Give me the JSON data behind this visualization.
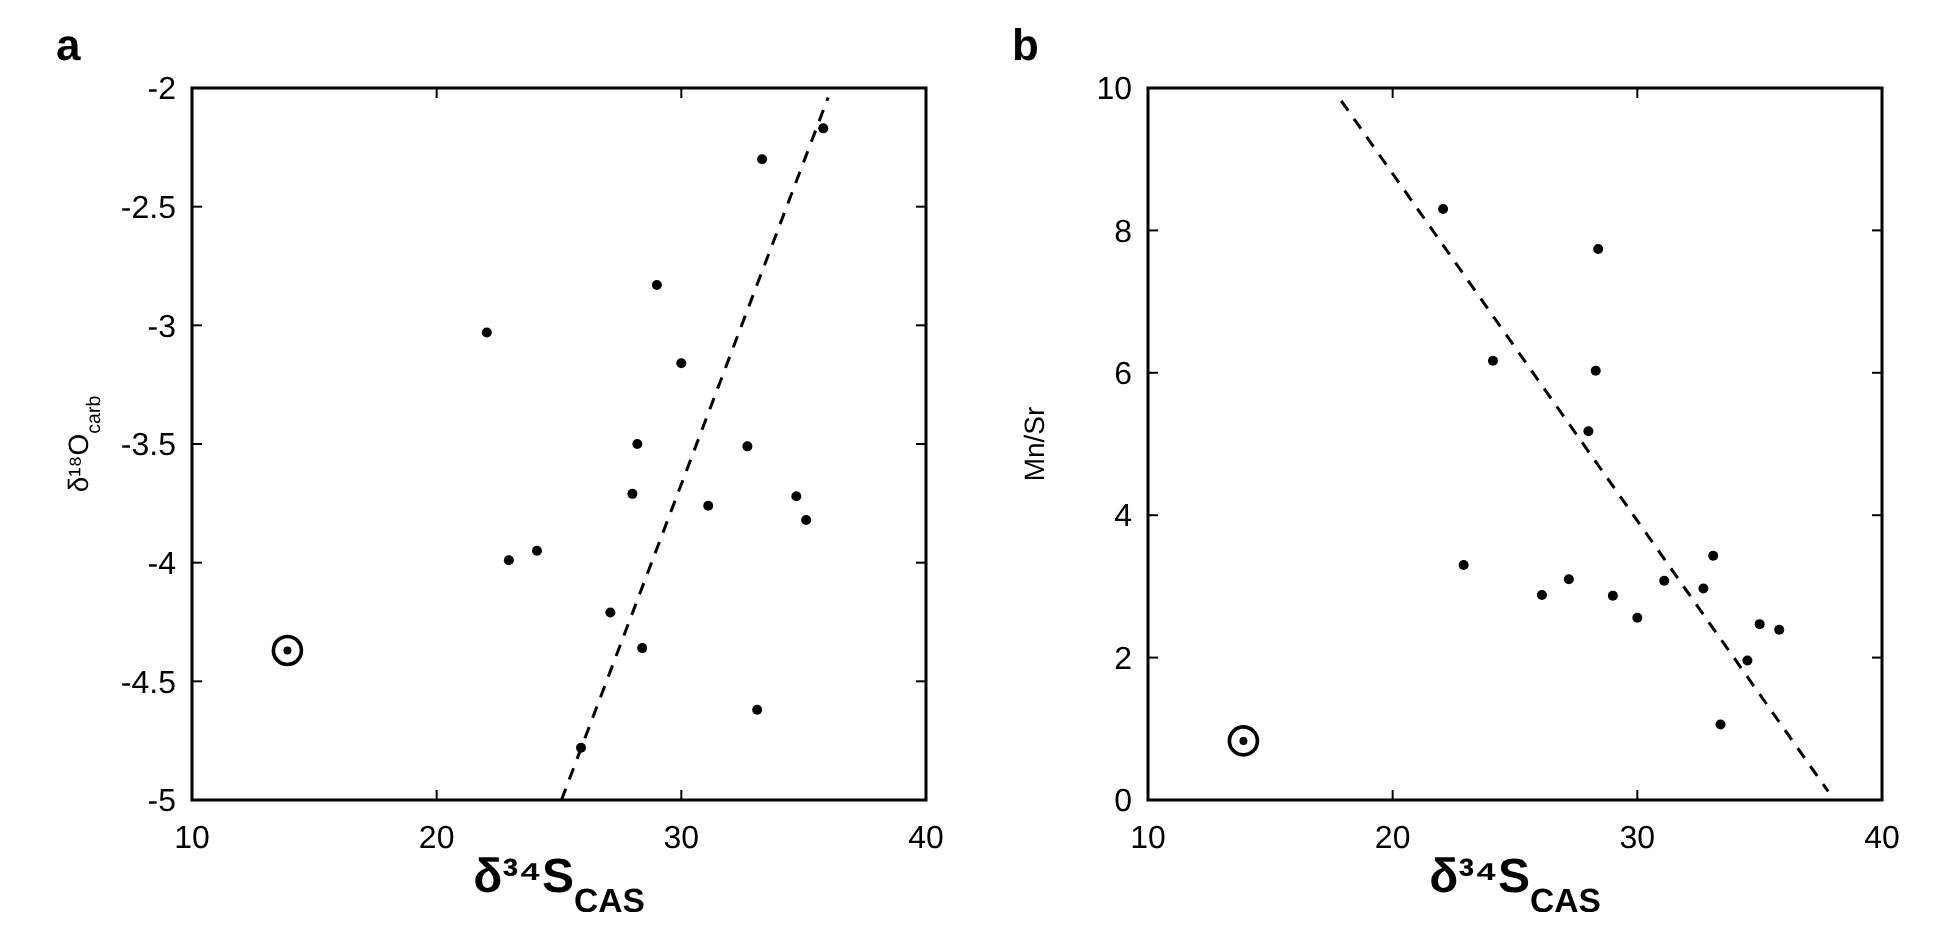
{
  "chart_data": [
    {
      "type": "scatter",
      "title": "a",
      "xlabel": "δ³⁴S$_{CAS}$",
      "ylabel": "δ¹⁸O$_{carb}$",
      "xlim": [
        10,
        40
      ],
      "xticks": [
        10,
        20,
        30,
        40
      ],
      "ylim": [
        -5,
        -2
      ],
      "yticks": [
        -5,
        -4.5,
        -4,
        -3.5,
        -3,
        -2.5,
        -2
      ],
      "grid": false,
      "series": [
        {
          "color": "#000000",
          "marker": "circle",
          "x": [
            22.05,
            22.95,
            24.1,
            29.0,
            30.0,
            28.2,
            28.0,
            31.1,
            32.7,
            33.3,
            35.8,
            34.7,
            35.1,
            27.1,
            28.4,
            33.1,
            25.9
          ],
          "values": [
            -3.03,
            -3.99,
            -3.95,
            -2.83,
            -3.16,
            -3.5,
            -3.71,
            -3.76,
            -3.51,
            -2.3,
            -2.17,
            -3.72,
            -3.82,
            -4.21,
            -4.36,
            -4.62,
            -4.78
          ]
        },
        {
          "color": "#000000",
          "marker": "circle",
          "x": [
            13.9
          ],
          "values": [
            -4.37
          ]
        },
        {
          "type": "line",
          "color": "#000000",
          "line_style": "dashed",
          "marker": "none",
          "x": [
            25.1,
            36.0
          ],
          "values": [
            -5,
            -2.04
          ]
        }
      ]
    },
    {
      "type": "scatter",
      "title": "b",
      "xlabel": "δ³⁴S$_{CAS}$",
      "ylabel": "Mn/Sr",
      "xlim": [
        10,
        40
      ],
      "xticks": [
        10,
        20,
        30,
        40
      ],
      "ylim": [
        0,
        10
      ],
      "yticks": [
        0,
        2,
        4,
        6,
        8,
        10
      ],
      "grid": false,
      "series": [
        {
          "color": "#000000",
          "marker": "circle",
          "x": [
            22.06,
            28.4,
            24.1,
            28.3,
            28.0,
            22.9,
            26.1,
            27.2,
            29.0,
            30.0,
            31.1,
            32.7,
            33.1,
            35.0,
            35.8,
            34.5,
            33.4
          ],
          "values": [
            8.3,
            7.74,
            6.17,
            6.03,
            5.18,
            3.3,
            2.88,
            3.1,
            2.87,
            2.56,
            3.08,
            2.97,
            3.43,
            2.47,
            2.39,
            1.96,
            1.06
          ]
        },
        {
          "color": "#000000",
          "marker": "circle",
          "x": [
            13.9
          ],
          "values": [
            0.83
          ]
        },
        {
          "type": "line",
          "color": "#000000",
          "line_style": "dashed",
          "marker": "none",
          "x": [
            17.9,
            37.8
          ],
          "values": [
            9.82,
            0.12
          ]
        }
      ]
    }
  ]
}
